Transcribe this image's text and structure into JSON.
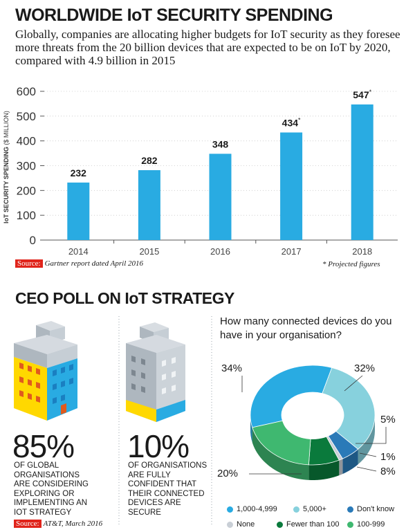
{
  "title": "WORLDWIDE IoT SECURITY SPENDING",
  "subtitle": "Globally, companies are allocating higher budgets for IoT security as they foresee more threats from the 20 billion devices that are expected to be on IoT by 2020, compared with 4.9 billion in 2015",
  "chart_data": [
    {
      "type": "bar",
      "ylabel": "IoT SECURITY SPENDING",
      "ylabel_unit": "($ MILLION)",
      "categories": [
        "2014",
        "2015",
        "2016",
        "2017",
        "2018"
      ],
      "values": [
        232,
        282,
        348,
        434,
        547
      ],
      "data_labels": [
        "232",
        "282",
        "348",
        "434",
        "547"
      ],
      "projected": [
        false,
        false,
        false,
        true,
        true
      ],
      "projected_mark": "*",
      "ylim": [
        0,
        600
      ],
      "yticks": [
        0,
        100,
        200,
        300,
        400,
        500,
        600
      ],
      "colors": {
        "bar": "#29abe2"
      }
    },
    {
      "type": "pie",
      "style": "donut-3d",
      "title": "How many connected devices do you have in your organisation?",
      "categories": [
        "1,000-4,999",
        "5,000+",
        "Don't know",
        "None",
        "Fewer than 100",
        "100-999"
      ],
      "values": [
        34,
        32,
        5,
        1,
        8,
        20
      ],
      "data_labels": [
        "34%",
        "32%",
        "5%",
        "1%",
        "8%",
        "20%"
      ],
      "colors": [
        "#29abe2",
        "#87d1dd",
        "#2a7ab8",
        "#c9cfd6",
        "#0a7a3c",
        "#3fb870"
      ]
    }
  ],
  "source1": {
    "label": "Source:",
    "text": "Gartner report dated April 2016"
  },
  "footnote": "* Projected figures",
  "poll": {
    "title": "CEO POLL ON IoT STRATEGY",
    "stat1": {
      "value": "85%",
      "text": "OF GLOBAL ORGANISATIONS ARE CONSIDERING EXPLORING OR IMPLEMENTING AN IoT STRATEGY"
    },
    "stat2": {
      "value": "10%",
      "text": "OF ORGANISATIONS ARE FULLY CONFIDENT THAT THEIR CONNECTED DEVICES ARE SECURE"
    },
    "source": {
      "label": "Source:",
      "text": "AT&T, March 2016"
    }
  },
  "colors": {
    "accent_red": "#e0241b",
    "building_yellow": "#ffd800",
    "building_blue": "#29abe2",
    "building_grey": "#b9c2cb"
  }
}
